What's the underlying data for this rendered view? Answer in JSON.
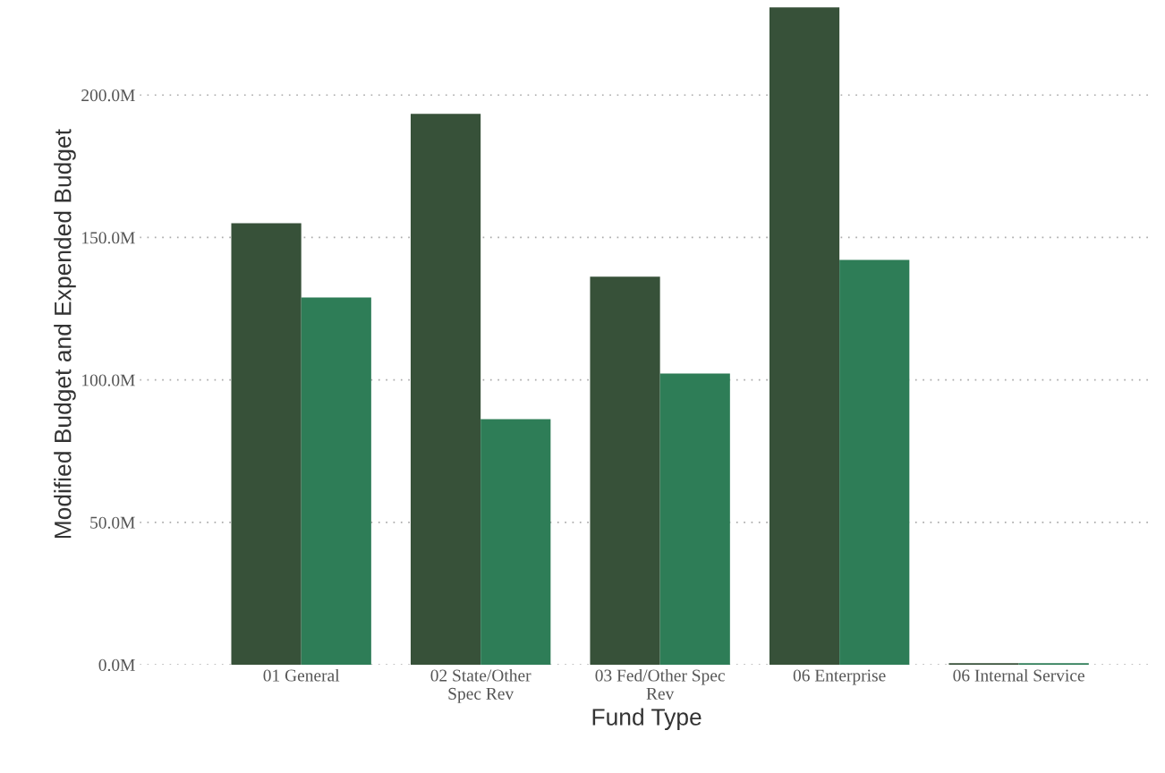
{
  "chart_data": {
    "type": "bar",
    "xlabel": "Fund Type",
    "ylabel": "Modified Budget and Expended Budget",
    "categories": [
      "01 General",
      "02 State/Other\nSpec Rev",
      "03 Fed/Other Spec\nRev",
      "06 Enterprise",
      "06 Internal Service"
    ],
    "series": [
      {
        "color": "#375139",
        "values": [
          155.0,
          193.4,
          136.2,
          230.8,
          0.6
        ]
      },
      {
        "color": "#2e7d57",
        "values": [
          128.9,
          86.2,
          102.2,
          142.1,
          0.6
        ]
      }
    ],
    "ylim": [
      0,
      232
    ],
    "yticks": [
      {
        "value": 0,
        "label": "0.0M"
      },
      {
        "value": 50,
        "label": "50.0M"
      },
      {
        "value": 100,
        "label": "100.0M"
      },
      {
        "value": 150,
        "label": "150.0M"
      },
      {
        "value": 200,
        "label": "200.0M"
      }
    ],
    "grid": "y"
  }
}
